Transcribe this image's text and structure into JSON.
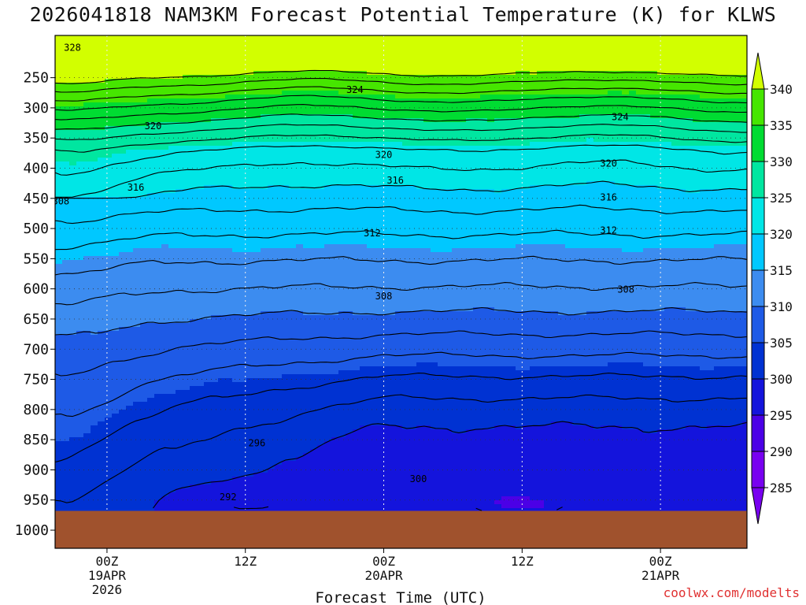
{
  "chart_data": {
    "type": "heatmap",
    "title": "2026041818 NAM3KM Forecast Potential Temperature (K) for KLWS",
    "xlabel": "Forecast Time (UTC)",
    "ylabel": "",
    "credit": "coolwx.com/modelts",
    "xlim_hours": [
      -4.5,
      55.5
    ],
    "ylim_hpa": [
      180,
      1030
    ],
    "x_ticks": [
      {
        "hour": 0,
        "label": "00Z",
        "date": "19APR",
        "year": "2026"
      },
      {
        "hour": 12,
        "label": "12Z",
        "date": "",
        "year": ""
      },
      {
        "hour": 24,
        "label": "00Z",
        "date": "20APR",
        "year": ""
      },
      {
        "hour": 36,
        "label": "12Z",
        "date": "",
        "year": ""
      },
      {
        "hour": 48,
        "label": "00Z",
        "date": "21APR",
        "year": ""
      }
    ],
    "y_ticks": [
      250,
      300,
      350,
      400,
      450,
      500,
      550,
      600,
      650,
      700,
      750,
      800,
      850,
      900,
      950,
      1000
    ],
    "surface_pressure_hpa": 968,
    "colorbar": {
      "levels": [
        285,
        290,
        295,
        300,
        305,
        310,
        315,
        320,
        325,
        330,
        335,
        340
      ],
      "labels": [
        "285",
        "290",
        "295",
        "300",
        "305",
        "310",
        "315",
        "320",
        "325",
        "330",
        "335",
        "340"
      ],
      "colors": [
        "#7800f0",
        "#7800f0",
        "#4b00e6",
        "#1414dc",
        "#0032d2",
        "#1e5ae6",
        "#3c8cf0",
        "#00c8ff",
        "#00e6e6",
        "#00e6a0",
        "#00dc32",
        "#46e600",
        "#d2ff00"
      ]
    },
    "isotherm_interval_k": 2,
    "contour_labels": [
      {
        "value": "328",
        "hour": -3.0,
        "p": 200
      },
      {
        "value": "324",
        "hour": 21.5,
        "p": 270
      },
      {
        "value": "324",
        "hour": 44.5,
        "p": 315
      },
      {
        "value": "320",
        "hour": 4.0,
        "p": 330
      },
      {
        "value": "320",
        "hour": 24.0,
        "p": 378
      },
      {
        "value": "320",
        "hour": 43.5,
        "p": 392
      },
      {
        "value": "316",
        "hour": 25.0,
        "p": 420
      },
      {
        "value": "316",
        "hour": 2.5,
        "p": 432
      },
      {
        "value": "316",
        "hour": 43.5,
        "p": 448
      },
      {
        "value": "308",
        "hour": -4.0,
        "p": 455
      },
      {
        "value": "312",
        "hour": 23.0,
        "p": 508
      },
      {
        "value": "312",
        "hour": 43.5,
        "p": 503
      },
      {
        "value": "308",
        "hour": 24.0,
        "p": 612
      },
      {
        "value": "308",
        "hour": 45.0,
        "p": 601
      },
      {
        "value": "296",
        "hour": 13.0,
        "p": 856
      },
      {
        "value": "300",
        "hour": 27.0,
        "p": 915
      },
      {
        "value": "292",
        "hour": 10.5,
        "p": 945
      }
    ]
  }
}
